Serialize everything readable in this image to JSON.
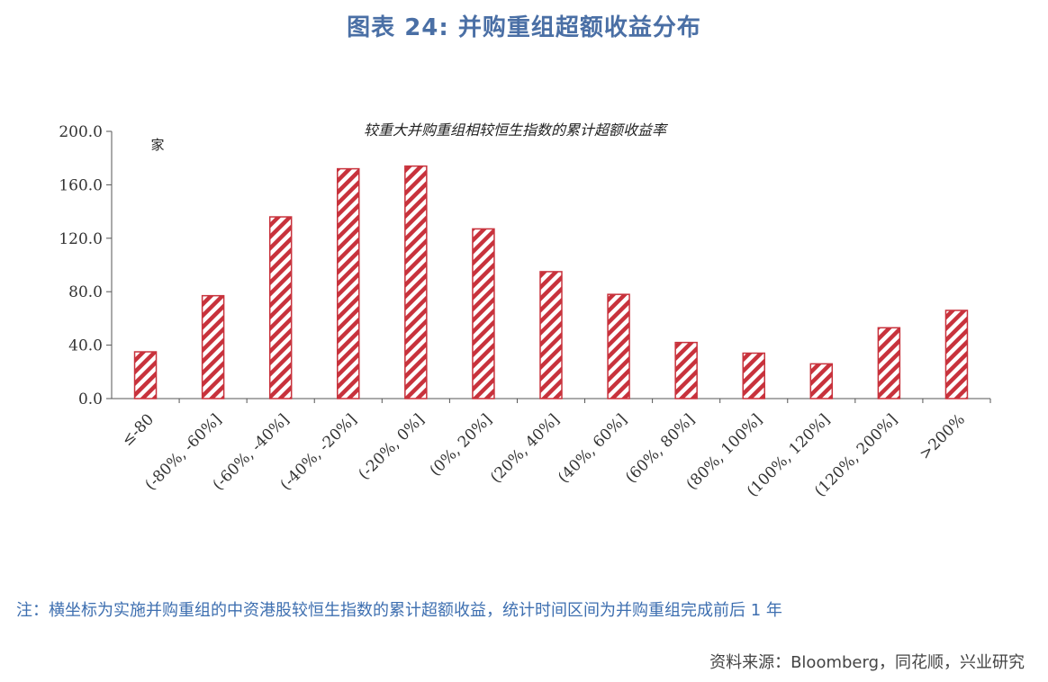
{
  "header": {
    "figure_title": "图表 24: 并购重组超额收益分布"
  },
  "chart_data": {
    "type": "bar",
    "title": "较重大并购重组相较恒生指数的累计超额收益率",
    "unit_label": "家",
    "categories": [
      "≤-80",
      "(-80%, -60%]",
      "(-60%, -40%]",
      "(-40%, -20%]",
      "(-20%, 0%]",
      "(0%, 20%]",
      "(20%, 40%]",
      "(40%, 60%]",
      "(60%, 80%]",
      "(80%, 100%]",
      "(100%, 120%]",
      "(120%, 200%]",
      ">200%"
    ],
    "values": [
      35,
      77,
      136,
      172,
      174,
      127,
      95,
      78,
      42,
      34,
      26,
      53,
      66
    ],
    "ylim": [
      0,
      200
    ],
    "yticks": [
      "0.0",
      "40.0",
      "80.0",
      "120.0",
      "160.0",
      "200.0"
    ],
    "bar_color": "#c8323c",
    "grid": false
  },
  "footer": {
    "note": "注：横坐标为实施并购重组的中资港股较恒生指数的累计超额收益，统计时间区间为并购重组完成前后 1 年",
    "source": "资料来源：Bloomberg，同花顺，兴业研究"
  }
}
